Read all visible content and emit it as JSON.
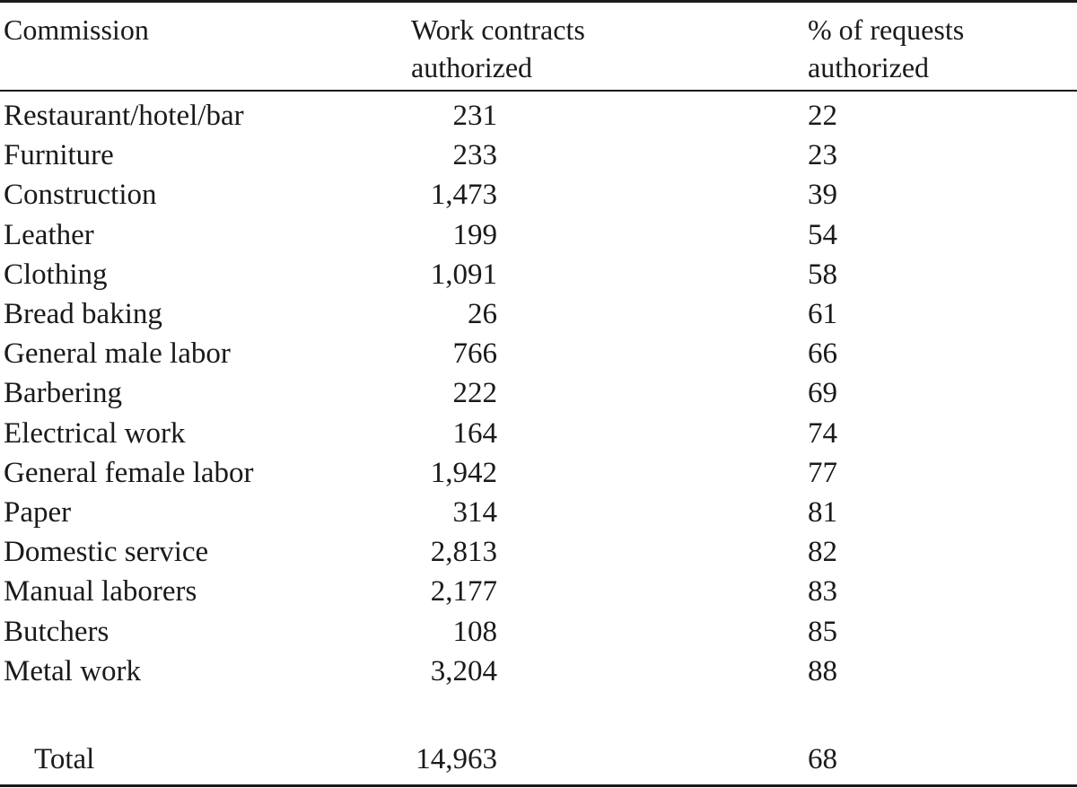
{
  "table": {
    "headers": {
      "commission": "Commission",
      "contracts_line1": "Work contracts",
      "contracts_line2": "authorized",
      "percent_line1": "% of requests",
      "percent_line2": "authorized"
    },
    "rows": [
      {
        "commission": "Restaurant/hotel/bar",
        "contracts": "231",
        "percent": "22"
      },
      {
        "commission": "Furniture",
        "contracts": "233",
        "percent": "23"
      },
      {
        "commission": "Construction",
        "contracts": "1,473",
        "percent": "39"
      },
      {
        "commission": "Leather",
        "contracts": "199",
        "percent": "54"
      },
      {
        "commission": "Clothing",
        "contracts": "1,091",
        "percent": "58"
      },
      {
        "commission": "Bread baking",
        "contracts": "26",
        "percent": "61"
      },
      {
        "commission": "General male labor",
        "contracts": "766",
        "percent": "66"
      },
      {
        "commission": "Barbering",
        "contracts": "222",
        "percent": "69"
      },
      {
        "commission": "Electrical work",
        "contracts": "164",
        "percent": "74"
      },
      {
        "commission": "General female labor",
        "contracts": "1,942",
        "percent": "77"
      },
      {
        "commission": "Paper",
        "contracts": "314",
        "percent": "81"
      },
      {
        "commission": "Domestic service",
        "contracts": "2,813",
        "percent": "82"
      },
      {
        "commission": "Manual laborers",
        "contracts": "2,177",
        "percent": "83"
      },
      {
        "commission": "Butchers",
        "contracts": "108",
        "percent": "85"
      },
      {
        "commission": "Metal work",
        "contracts": "3,204",
        "percent": "88"
      }
    ],
    "total": {
      "commission": "Total",
      "contracts": "14,963",
      "percent": "68"
    }
  }
}
